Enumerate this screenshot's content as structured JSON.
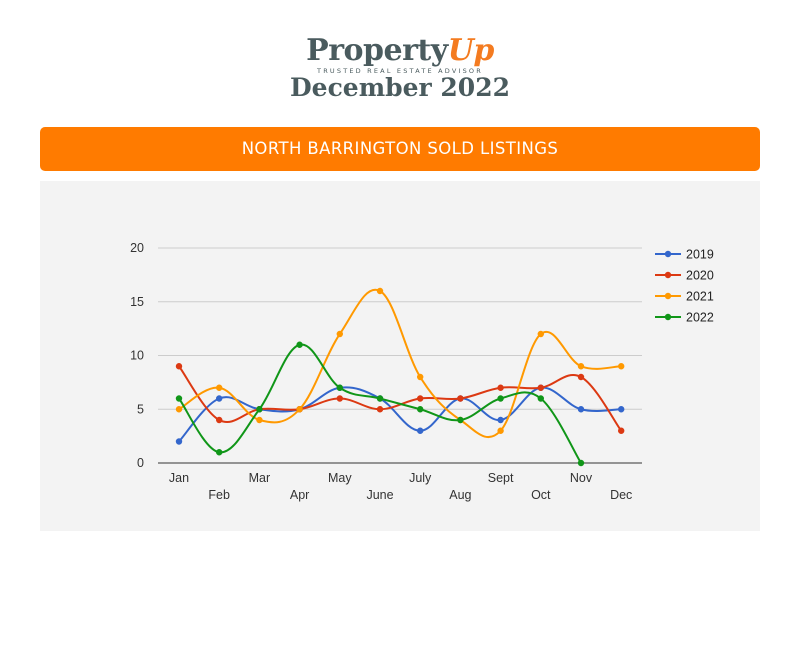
{
  "header": {
    "logo_main": "Property",
    "logo_accent": "Up",
    "logo_tagline": "TRUSTED REAL ESTATE ADVISOR",
    "period": "December 2022"
  },
  "banner": {
    "title": "NORTH BARRINGTON SOLD LISTINGS"
  },
  "chart_data": {
    "type": "line",
    "title": "",
    "xlabel": "",
    "ylabel": "",
    "categories": [
      "Jan",
      "Feb",
      "Mar",
      "Apr",
      "May",
      "June",
      "July",
      "Aug",
      "Sept",
      "Oct",
      "Nov",
      "Dec"
    ],
    "ylim": [
      0,
      20
    ],
    "yticks": [
      0,
      5,
      10,
      15,
      20
    ],
    "grid": true,
    "legend_position": "right",
    "series": [
      {
        "name": "2019",
        "color": "#3366cc",
        "values": [
          2,
          6,
          5,
          5,
          7,
          6,
          3,
          6,
          4,
          7,
          5,
          5
        ]
      },
      {
        "name": "2020",
        "color": "#dc3912",
        "values": [
          9,
          4,
          5,
          5,
          6,
          5,
          6,
          6,
          7,
          7,
          8,
          3
        ]
      },
      {
        "name": "2021",
        "color": "#ff9900",
        "values": [
          5,
          7,
          4,
          5,
          12,
          16,
          8,
          4,
          3,
          12,
          9,
          9
        ]
      },
      {
        "name": "2022",
        "color": "#109618",
        "values": [
          6,
          1,
          5,
          11,
          7,
          6,
          5,
          4,
          6,
          6,
          0,
          null
        ]
      }
    ]
  }
}
